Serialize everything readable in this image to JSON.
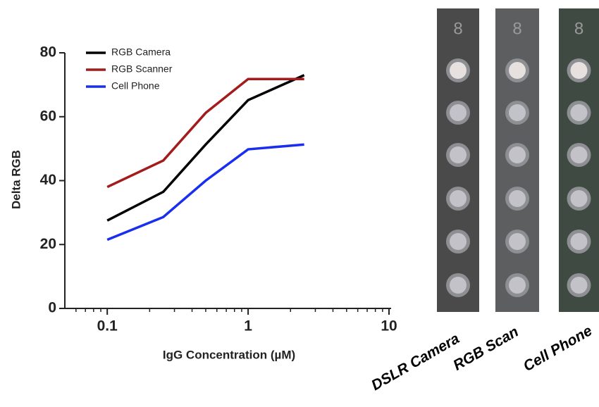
{
  "chart_data": {
    "type": "line",
    "x_label": "IgG Concentration (µM)",
    "y_label": "Delta RGB",
    "x": [
      0.1,
      0.25,
      0.5,
      1,
      2.5
    ],
    "series": [
      {
        "name": "RGB Camera",
        "color": "#000000",
        "values": [
          27.5,
          36.5,
          51.3,
          65.2,
          73
        ]
      },
      {
        "name": "RGB Scanner",
        "color": "#a31c1c",
        "values": [
          38,
          46.3,
          61.2,
          71.8,
          71.8
        ]
      },
      {
        "name": "Cell Phone",
        "color": "#1a2ef0",
        "values": [
          21.5,
          28.6,
          40,
          49.8,
          51.3
        ]
      }
    ],
    "xlog": true,
    "xlim": [
      0.05,
      10
    ],
    "xticks": [
      0.1,
      1,
      10
    ],
    "x_minor_ticks": [
      0.06,
      0.07,
      0.08,
      0.09,
      0.2,
      0.3,
      0.4,
      0.5,
      0.6,
      0.7,
      0.8,
      0.9,
      2,
      3,
      4,
      5,
      6,
      7,
      8,
      9
    ],
    "ylim": [
      0,
      80
    ],
    "yticks": [
      0,
      20,
      40,
      60,
      80
    ],
    "grid": false,
    "legend": "top-left"
  },
  "image_strips": [
    {
      "label": "DSLR Camera",
      "top_label": "8",
      "background": "#4a4a4a"
    },
    {
      "label": "RGB Scan",
      "top_label": "8",
      "background": "#5c5e60"
    },
    {
      "label": "Cell Phone",
      "top_label": "8",
      "background": "#3f4a43"
    }
  ]
}
